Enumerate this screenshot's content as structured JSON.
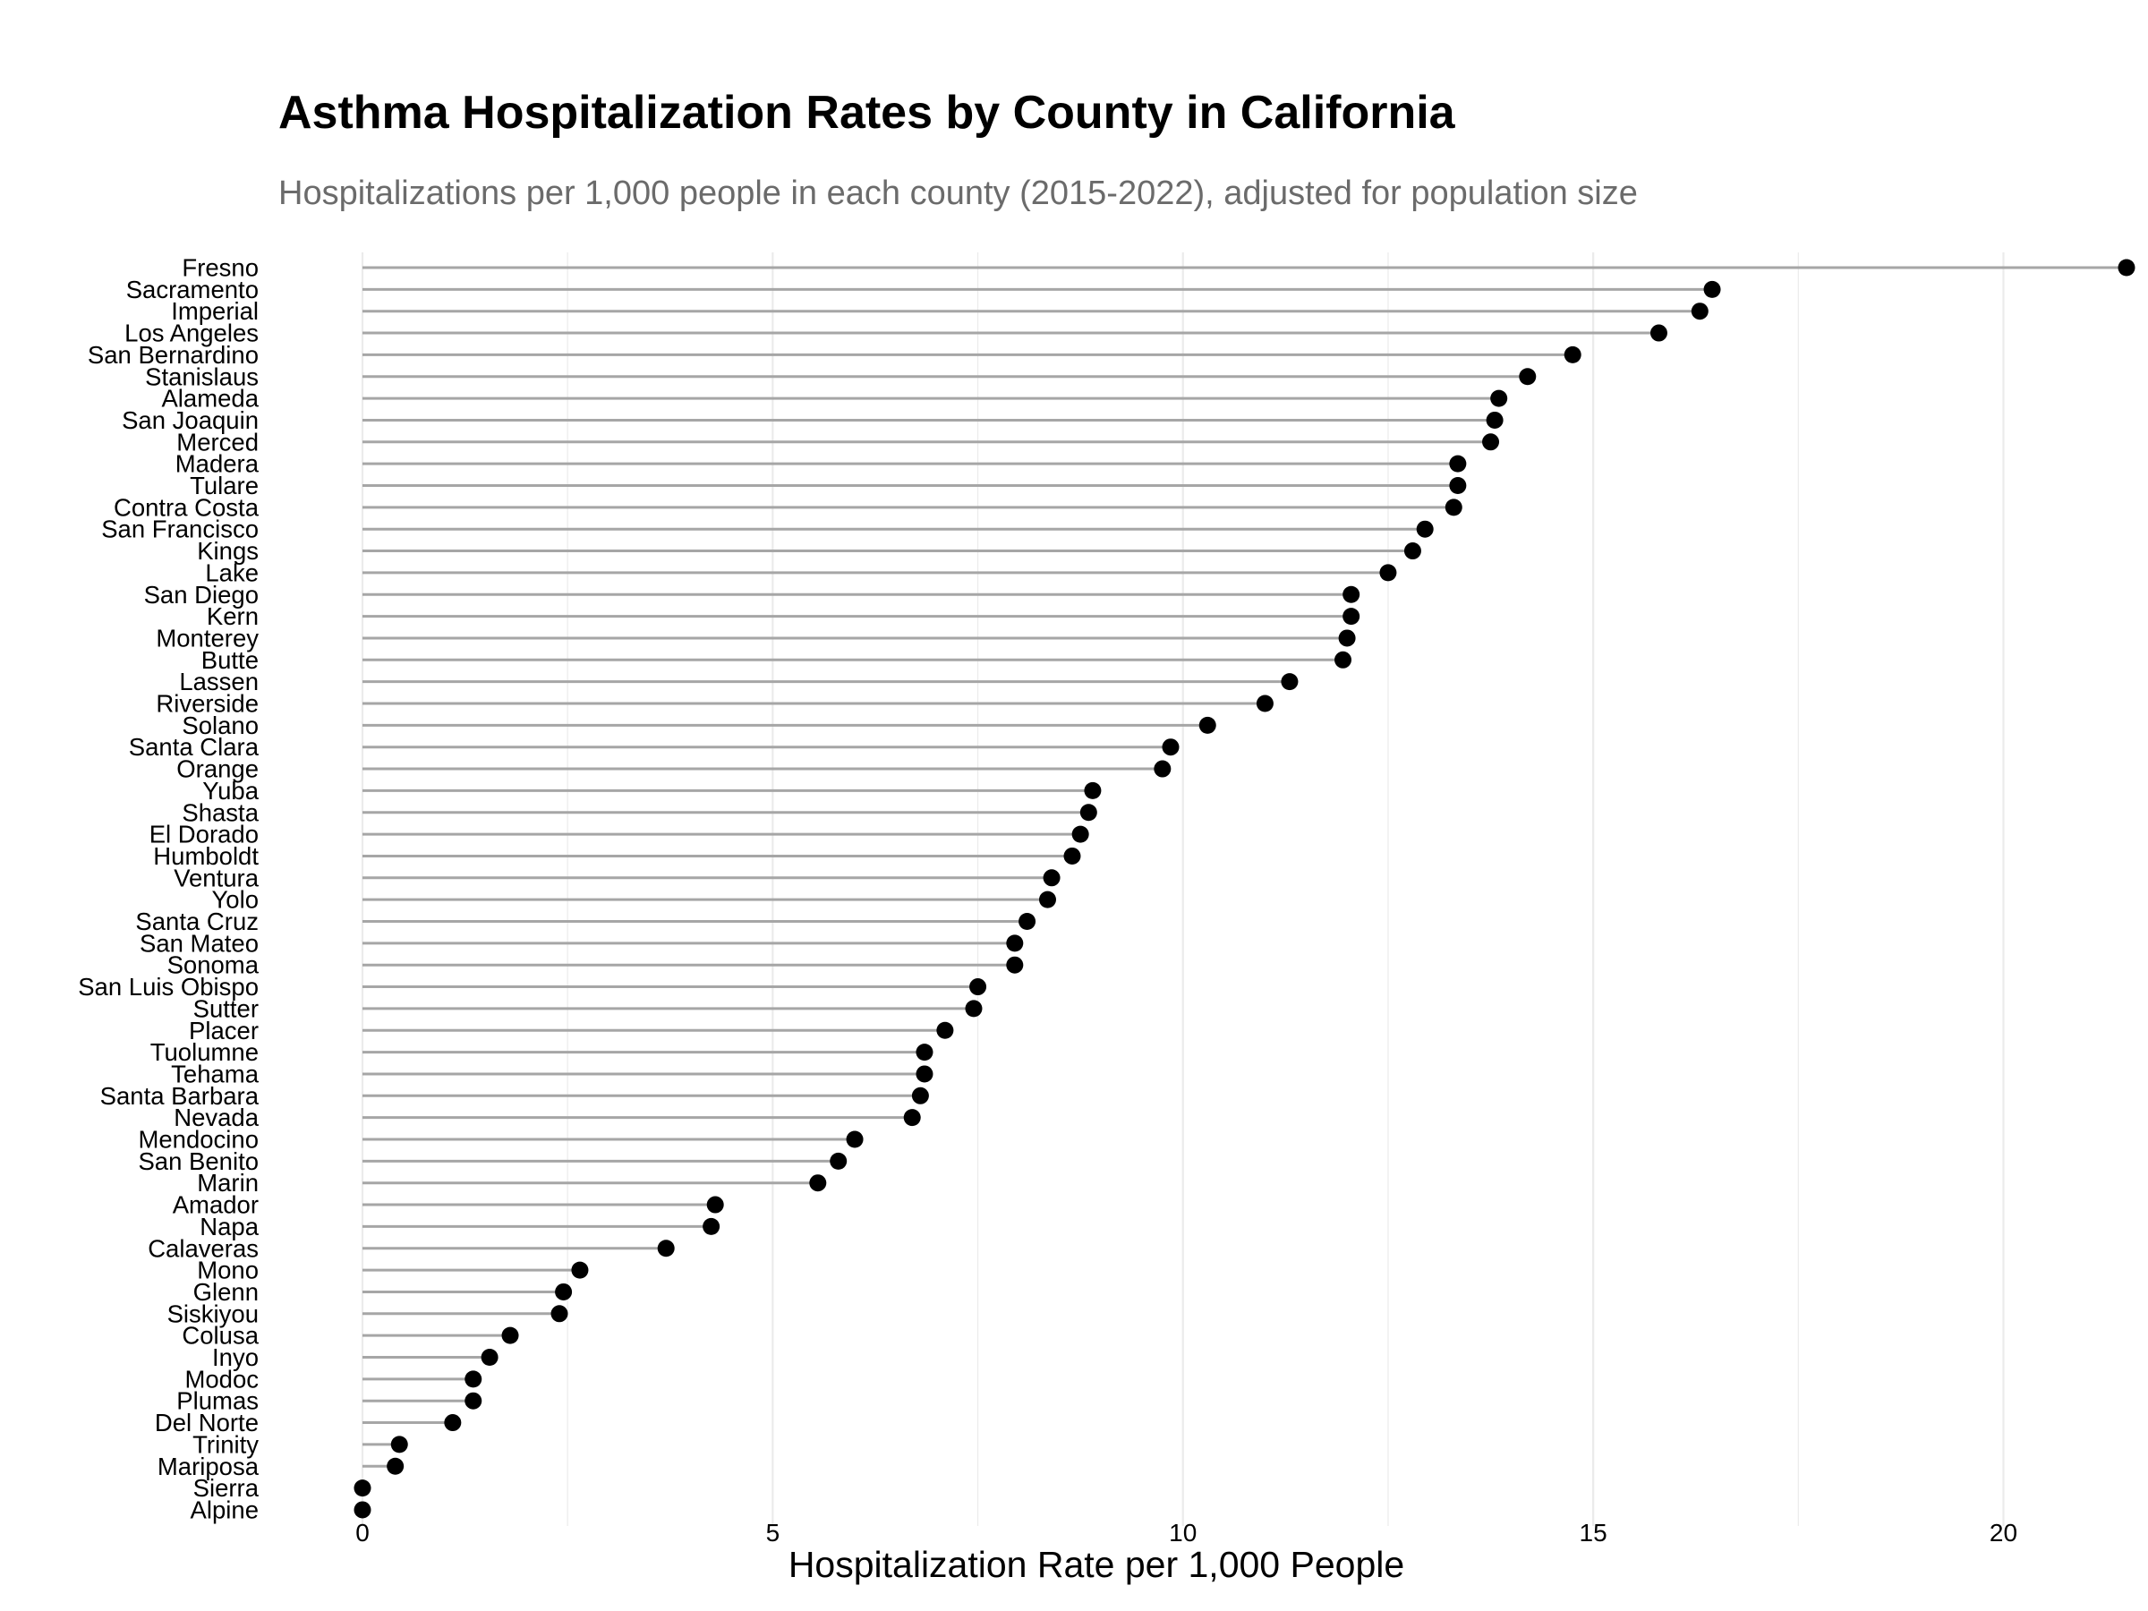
{
  "chart_data": {
    "type": "lollipop",
    "title": "Asthma Hospitalization Rates by County in California",
    "subtitle": "Hospitalizations per 1,000 people in each county (2015-2022), adjusted for population size",
    "xlabel": "Hospitalization Rate per 1,000 People",
    "ylabel": "",
    "xlim": [
      0,
      21.5
    ],
    "x_ticks": [
      0,
      5,
      10,
      15,
      20
    ],
    "grid": true,
    "legend": "none",
    "colors": {
      "point": "#000000",
      "stem": "#a6a6a6",
      "grid": "#ebebeb"
    },
    "categories": [
      "Fresno",
      "Sacramento",
      "Imperial",
      "Los Angeles",
      "San Bernardino",
      "Stanislaus",
      "Alameda",
      "San Joaquin",
      "Merced",
      "Madera",
      "Tulare",
      "Contra Costa",
      "San Francisco",
      "Kings",
      "Lake",
      "San Diego",
      "Kern",
      "Monterey",
      "Butte",
      "Lassen",
      "Riverside",
      "Solano",
      "Santa Clara",
      "Orange",
      "Yuba",
      "Shasta",
      "El Dorado",
      "Humboldt",
      "Ventura",
      "Yolo",
      "Santa Cruz",
      "San Mateo",
      "Sonoma",
      "San Luis Obispo",
      "Sutter",
      "Placer",
      "Tuolumne",
      "Tehama",
      "Santa Barbara",
      "Nevada",
      "Mendocino",
      "San Benito",
      "Marin",
      "Amador",
      "Napa",
      "Calaveras",
      "Mono",
      "Glenn",
      "Siskiyou",
      "Colusa",
      "Inyo",
      "Modoc",
      "Plumas",
      "Del Norte",
      "Trinity",
      "Mariposa",
      "Sierra",
      "Alpine"
    ],
    "values": [
      21.5,
      16.45,
      16.3,
      15.8,
      14.75,
      14.2,
      13.85,
      13.8,
      13.75,
      13.35,
      13.35,
      13.3,
      12.95,
      12.8,
      12.5,
      12.05,
      12.05,
      12.0,
      11.95,
      11.3,
      11.0,
      10.3,
      9.85,
      9.75,
      8.9,
      8.85,
      8.75,
      8.65,
      8.4,
      8.35,
      8.1,
      7.95,
      7.95,
      7.5,
      7.45,
      7.1,
      6.85,
      6.85,
      6.8,
      6.7,
      6.0,
      5.8,
      5.55,
      4.3,
      4.25,
      3.7,
      2.65,
      2.45,
      2.4,
      1.8,
      1.55,
      1.35,
      1.35,
      1.1,
      0.45,
      0.4,
      0.0,
      0.0
    ]
  }
}
